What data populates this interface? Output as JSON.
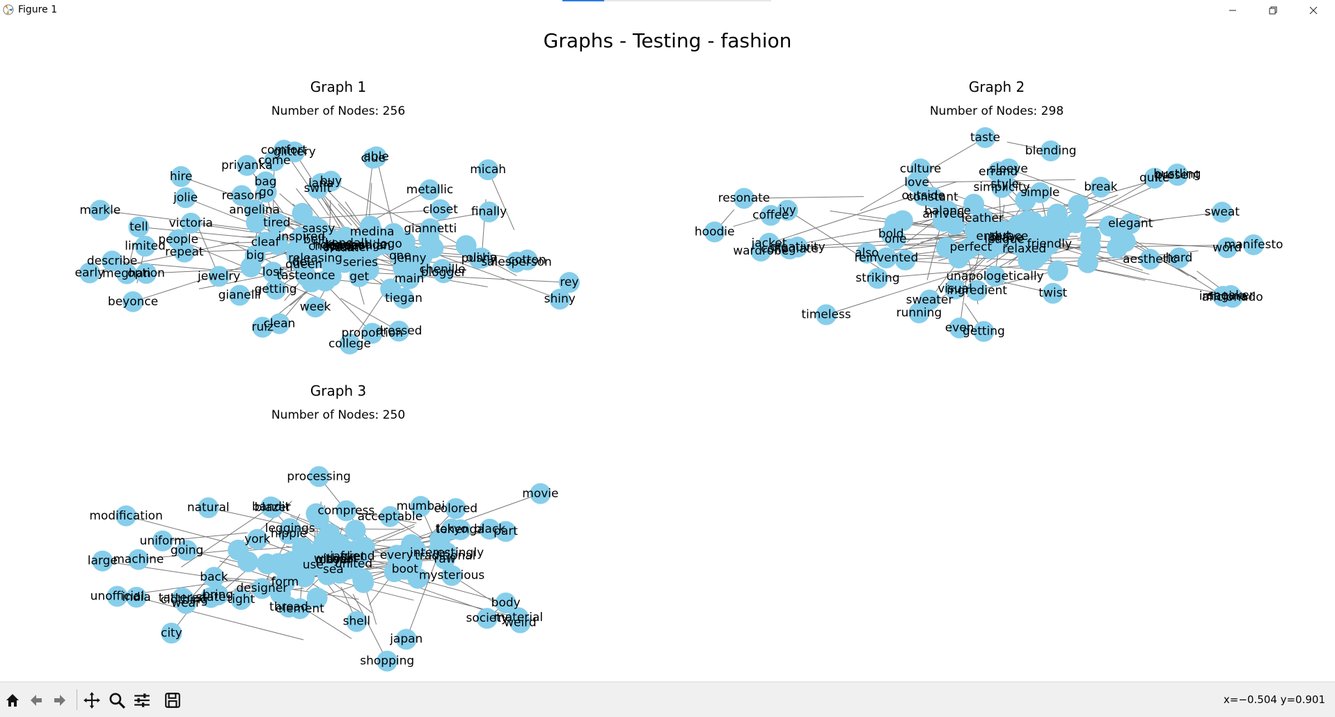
{
  "window": {
    "title": "Figure 1",
    "progress": 0.2
  },
  "figure": {
    "title": "Graphs - Testing - fashion",
    "node_color": "#87ceeb",
    "edge_color": "#777777"
  },
  "graphs": [
    {
      "title": "Graph 1",
      "nodes_label": "Number of Nodes: 256",
      "labels": [
        "finally",
        "get",
        "tasteonce",
        "tired",
        "people",
        "option",
        "hodgepodge",
        "salesperson",
        "tell",
        "buy",
        "pushy",
        "closet",
        "hire",
        "clue",
        "go",
        "able",
        "describe",
        "series",
        "releasing",
        "jewelry",
        "glittery",
        "kendall",
        "metallic",
        "big",
        "olivia",
        "logo",
        "bag",
        "belt",
        "shiny",
        "angelina",
        "jolie",
        "meghan",
        "markle",
        "queen",
        "week",
        "swift",
        "blogger",
        "micah",
        "gianelli",
        "rey",
        "del",
        "lana",
        "chopra",
        "main",
        "one",
        "priyanka",
        "beyonce",
        "reason",
        "medina",
        "lost",
        "come",
        "dressed",
        "getting",
        "repeat",
        "jenny",
        "cleaf",
        "college",
        "sassy",
        "tiegan",
        "kim",
        "proportion",
        "inspired",
        "comfort",
        "cotton",
        "kardashian",
        "giannetti",
        "ruiz",
        "victoria",
        "chenille",
        "sweater",
        "jenner",
        "limited",
        "clean",
        "early"
      ]
    },
    {
      "title": "Graph 2",
      "nodes_label": "Number of Nodes: 298",
      "labels": [
        "sweat",
        "getting",
        "break",
        "brave",
        "bold",
        "reinvented",
        "even",
        "one",
        "creativity",
        "outside",
        "also",
        "unapologetically",
        "embrace",
        "arrived",
        "word",
        "imagine",
        "visual",
        "manifesto",
        "put",
        "leather",
        "jacket",
        "wardrobe",
        "aesthetic",
        "culture",
        "simplicity",
        "love",
        "quite",
        "sleeve",
        "style",
        "ingredient",
        "taste",
        "resonate",
        "relaxed",
        "elegant",
        "timeless",
        "blending",
        "balance",
        "perfect",
        "striking",
        "friendly",
        "present",
        "twist",
        "collegiate",
        "sneaker",
        "hoodie",
        "aficionado",
        "sweater",
        "coffee",
        "league",
        "errand",
        "ivy",
        "hard",
        "constant",
        "simple",
        "bustling",
        "running"
      ]
    },
    {
      "title": "Graph 3",
      "nodes_label": "Number of Nodes: 250",
      "labels": [
        "raw",
        "element",
        "form",
        "natural",
        "machine",
        "wear",
        "processing",
        "part",
        "use",
        "modification",
        "without",
        "hippie",
        "bring",
        "large",
        "designer",
        "back",
        "society",
        "acceptable",
        "every",
        "interestingly",
        "sea",
        "shell",
        "thread",
        "lehenga",
        "choli",
        "tight",
        "boot",
        "black",
        "tattered",
        "jacket",
        "colored",
        "blazer",
        "compress",
        "uniform",
        "india",
        "mumbai",
        "japan",
        "tokyo",
        "state",
        "united",
        "city",
        "bandit",
        "unofficial",
        "mysterious",
        "friend",
        "going",
        "shopping",
        "player",
        "york",
        "weird",
        "clothing",
        "movie",
        "traditional",
        "material",
        "leggings",
        "body"
      ]
    }
  ]
}
